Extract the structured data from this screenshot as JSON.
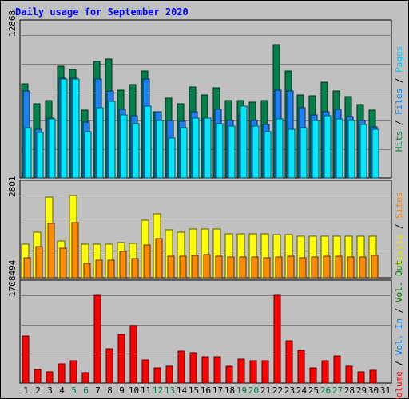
{
  "chart_data": {
    "type": "bar",
    "title": "Daily usage for September 2020",
    "days": [
      "1",
      "2",
      "3",
      "4",
      "5",
      "6",
      "7",
      "8",
      "9",
      "10",
      "11",
      "12",
      "13",
      "14",
      "15",
      "16",
      "17",
      "18",
      "19",
      "20",
      "21",
      "22",
      "23",
      "24",
      "25",
      "26",
      "27",
      "28",
      "29",
      "30",
      "31"
    ],
    "weekend_days": [
      "5",
      "6",
      "12",
      "13",
      "19",
      "20",
      "26",
      "27"
    ],
    "panels": [
      {
        "id": "hits",
        "ymax_label": "12868",
        "ymax": 12868,
        "series": [
          {
            "name": "Hits",
            "color": "#00804a",
            "values": [
              8500,
              6700,
              7000,
              10100,
              9800,
              6100,
              10500,
              10700,
              7900,
              8400,
              9600,
              6000,
              7200,
              6700,
              8200,
              7500,
              8100,
              7000,
              7000,
              6800,
              7000,
              12000,
              9600,
              7500,
              7400,
              8600,
              7800,
              7300,
              6600,
              6100,
              null
            ]
          },
          {
            "name": "Files",
            "color": "#1e7ff0",
            "values": [
              7800,
              4400,
              5400,
              9000,
              9000,
              5000,
              8900,
              7800,
              6200,
              5600,
              8900,
              6000,
              5200,
              5100,
              6000,
              5400,
              6200,
              5200,
              5700,
              5200,
              4800,
              7900,
              7800,
              6300,
              5700,
              6000,
              6200,
              5500,
              5200,
              4600,
              null
            ]
          },
          {
            "name": "Pages",
            "color": "#00e8ff",
            "values": [
              4500,
              4100,
              5300,
              8900,
              8900,
              4200,
              6300,
              6900,
              5700,
              4900,
              6500,
              5200,
              3600,
              4500,
              5400,
              5400,
              4900,
              4700,
              6500,
              4700,
              4200,
              5300,
              4400,
              4500,
              5200,
              5600,
              5300,
              5200,
              4800,
              4400,
              null
            ]
          }
        ],
        "legend": [
          {
            "text": "Hits",
            "color": "#008040"
          },
          {
            "text": " / ",
            "color": "#000000"
          },
          {
            "text": "Files",
            "color": "#0080ff"
          },
          {
            "text": " / ",
            "color": "#000000"
          },
          {
            "text": "Pages",
            "color": "#00c8ff"
          }
        ]
      },
      {
        "id": "visits",
        "ymax_label": "2801",
        "ymax": 2801,
        "series": [
          {
            "name": "Visits",
            "color": "#ffff00",
            "values": [
              1150,
              1550,
              2750,
              1250,
              2800,
              1130,
              1150,
              1130,
              1210,
              1160,
              1950,
              2170,
              1630,
              1550,
              1650,
              1650,
              1650,
              1500,
              1500,
              1500,
              1500,
              1480,
              1480,
              1420,
              1420,
              1420,
              1420,
              1420,
              1420,
              1420,
              null
            ]
          },
          {
            "name": "Sites",
            "color": "#ff8c00",
            "values": [
              690,
              1050,
              1850,
              1000,
              1870,
              500,
              600,
              600,
              900,
              660,
              1120,
              1320,
              740,
              740,
              770,
              790,
              740,
              700,
              710,
              720,
              690,
              720,
              740,
              690,
              700,
              740,
              730,
              720,
              720,
              750,
              null
            ]
          }
        ],
        "legend": [
          {
            "text": "Visits",
            "color": "#e8e800"
          },
          {
            "text": " / ",
            "color": "#000000"
          },
          {
            "text": "Sites",
            "color": "#ff8000"
          }
        ]
      },
      {
        "id": "volume",
        "ymax_label": "1708494",
        "ymax": 1708494,
        "series": [
          {
            "name": "Volume",
            "color": "#ff0000",
            "values": [
              910000,
              260000,
              210000,
              380000,
              440000,
              200000,
              1708494,
              670000,
              940000,
              1120000,
              450000,
              290000,
              330000,
              620000,
              590000,
              520000,
              510000,
              330000,
              460000,
              440000,
              430000,
              1708494,
              820000,
              640000,
              300000,
              430000,
              530000,
              320000,
              210000,
              250000,
              null
            ]
          }
        ],
        "legend": [
          {
            "text": "Volume",
            "color": "#ff0000"
          },
          {
            "text": " / ",
            "color": "#000000"
          },
          {
            "text": "Vol. In",
            "color": "#0080ff"
          },
          {
            "text": " / ",
            "color": "#000000"
          },
          {
            "text": "Vol. Out",
            "color": "#008000"
          }
        ]
      }
    ]
  }
}
